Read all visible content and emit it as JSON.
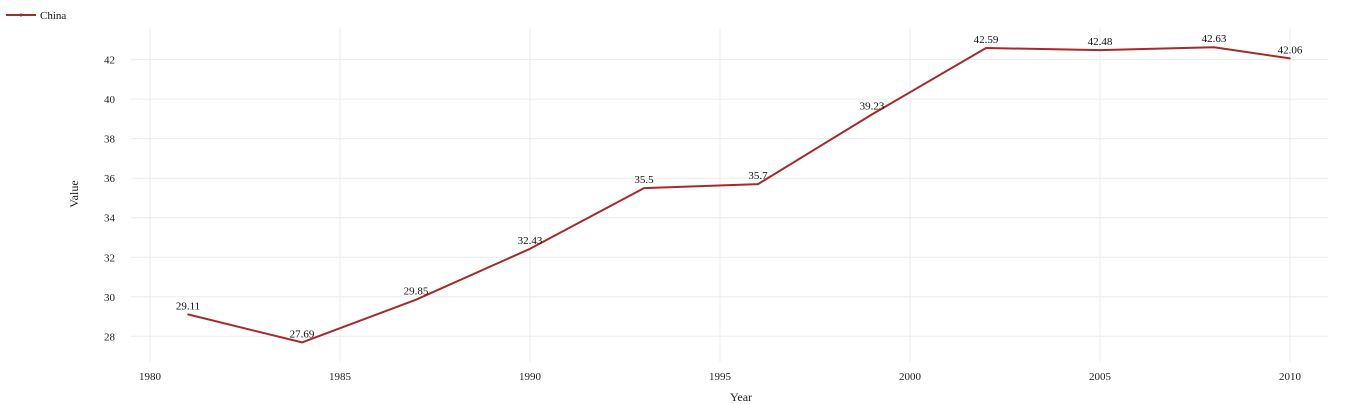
{
  "chart_data": {
    "type": "line",
    "xlabel": "Year",
    "ylabel": "Value",
    "xlim": [
      1979.5,
      2011
    ],
    "ylim": [
      26.7,
      43.6
    ],
    "xticks": [
      1980,
      1985,
      1990,
      1995,
      2000,
      2005,
      2010
    ],
    "yticks": [
      28,
      30,
      32,
      34,
      36,
      38,
      40,
      42
    ],
    "grid": true,
    "legend_position": "top-left",
    "series": [
      {
        "name": "China",
        "color": "#a52a2a",
        "points": [
          {
            "x": 1981,
            "y": 29.11,
            "label": "29.11"
          },
          {
            "x": 1984,
            "y": 27.69,
            "label": "27.69"
          },
          {
            "x": 1987,
            "y": 29.85,
            "label": "29.85"
          },
          {
            "x": 1990,
            "y": 32.43,
            "label": "32.43"
          },
          {
            "x": 1993,
            "y": 35.5,
            "label": "35.5"
          },
          {
            "x": 1996,
            "y": 35.7,
            "label": "35.7"
          },
          {
            "x": 1999,
            "y": 39.23,
            "label": "39.23"
          },
          {
            "x": 2002,
            "y": 42.59,
            "label": "42.59"
          },
          {
            "x": 2005,
            "y": 42.48,
            "label": "42.48"
          },
          {
            "x": 2008,
            "y": 42.63,
            "label": "42.63"
          },
          {
            "x": 2010,
            "y": 42.06,
            "label": "42.06"
          }
        ]
      }
    ]
  }
}
